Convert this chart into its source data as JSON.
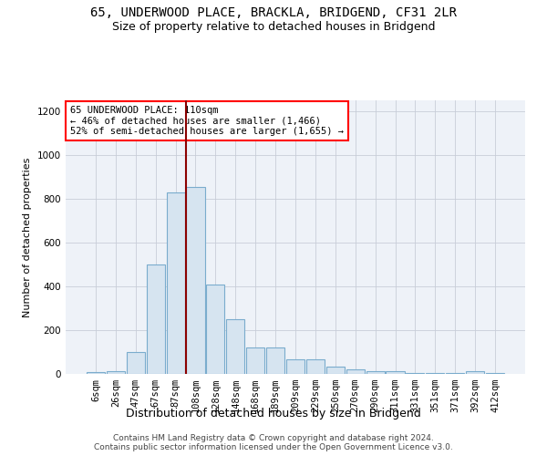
{
  "title_line1": "65, UNDERWOOD PLACE, BRACKLA, BRIDGEND, CF31 2LR",
  "title_line2": "Size of property relative to detached houses in Bridgend",
  "xlabel": "Distribution of detached houses by size in Bridgend",
  "ylabel": "Number of detached properties",
  "bar_color": "#d6e4f0",
  "bar_edge_color": "#7aaccd",
  "plot_bg_color": "#eef2f8",
  "bin_labels": [
    "6sqm",
    "26sqm",
    "47sqm",
    "67sqm",
    "87sqm",
    "108sqm",
    "128sqm",
    "148sqm",
    "168sqm",
    "189sqm",
    "209sqm",
    "229sqm",
    "250sqm",
    "270sqm",
    "290sqm",
    "311sqm",
    "331sqm",
    "351sqm",
    "371sqm",
    "392sqm",
    "412sqm"
  ],
  "bar_values": [
    8,
    14,
    100,
    500,
    830,
    855,
    408,
    250,
    120,
    120,
    65,
    65,
    32,
    22,
    14,
    14,
    5,
    5,
    5,
    12,
    5
  ],
  "ylim": [
    0,
    1250
  ],
  "yticks": [
    0,
    200,
    400,
    600,
    800,
    1000,
    1200
  ],
  "vline_bin_index": 5,
  "annot_line1": "65 UNDERWOOD PLACE: 110sqm",
  "annot_line2": "← 46% of detached houses are smaller (1,466)",
  "annot_line3": "52% of semi-detached houses are larger (1,655) →",
  "footer_line1": "Contains HM Land Registry data © Crown copyright and database right 2024.",
  "footer_line2": "Contains public sector information licensed under the Open Government Licence v3.0.",
  "title_fontsize": 10,
  "subtitle_fontsize": 9,
  "ylabel_fontsize": 8,
  "xlabel_fontsize": 9,
  "tick_fontsize": 7.5,
  "annot_fontsize": 7.5,
  "footer_fontsize": 6.5
}
